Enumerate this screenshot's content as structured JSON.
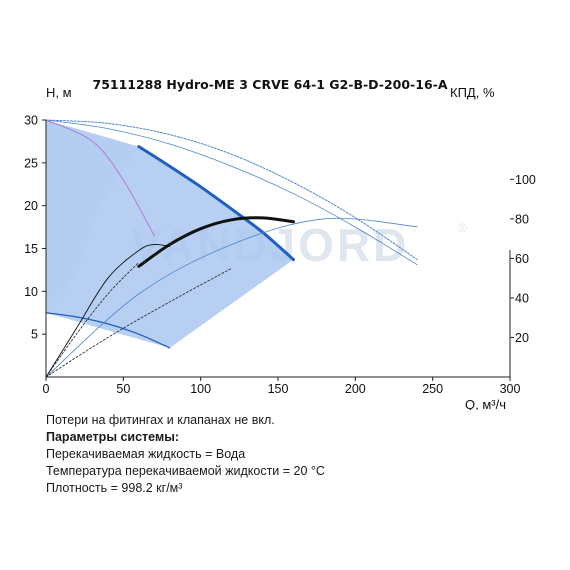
{
  "chart_data": {
    "type": "line",
    "title": "75111288 Hydro-ME 3 CRVE 64-1 G2-B-D-200-16-A",
    "watermark": "VANDJORD",
    "watermark_mark": "®",
    "xlabel": "Q, м³/ч",
    "ylabel_left": "H, м",
    "ylabel_right": "КПД, %",
    "xlim": [
      0,
      300
    ],
    "ylim_left": [
      0,
      30
    ],
    "ylim_right": [
      0,
      130
    ],
    "x_ticks": [
      "0",
      "50",
      "100",
      "150",
      "200",
      "250",
      "300"
    ],
    "y_left_ticks": [
      "5",
      "10",
      "15",
      "20",
      "25",
      "30"
    ],
    "y_right_ticks": [
      "20",
      "40",
      "60",
      "80",
      "100"
    ],
    "x_tick_values": [
      0,
      50,
      100,
      150,
      200,
      250,
      300
    ],
    "y_left_tick_values": [
      5,
      10,
      15,
      20,
      25,
      30
    ],
    "y_right_tick_values": [
      20,
      40,
      60,
      80,
      100
    ],
    "grid": false,
    "colors": {
      "operating_area": "#a9c7f0",
      "light_area": "#eef3fb",
      "head_curve": "#1f5fbf",
      "thin_curve": "#4f86cf",
      "purple_curve": "#b57ad6",
      "efficiency": "#111111",
      "dashed": "#333333"
    },
    "series": [
      {
        "kind": "head_duty",
        "axis": "left",
        "x": [
          60,
          80,
          100,
          120,
          140,
          160
        ],
        "y": [
          26.9,
          24.6,
          22.2,
          19.6,
          16.9,
          13.7
        ]
      },
      {
        "kind": "head_max",
        "axis": "left",
        "x": [
          0,
          40,
          80,
          120,
          160,
          200,
          240
        ],
        "y": [
          30.0,
          29.6,
          28.3,
          26.0,
          22.7,
          18.6,
          13.7
        ]
      },
      {
        "kind": "head_reduced",
        "axis": "left",
        "x": [
          0,
          40,
          80,
          120,
          160,
          200,
          240
        ],
        "y": [
          30.0,
          29.0,
          27.2,
          24.6,
          21.4,
          17.5,
          13.1
        ]
      },
      {
        "kind": "head_min",
        "axis": "left",
        "x": [
          0,
          20,
          40,
          60,
          80
        ],
        "y": [
          7.5,
          7.0,
          6.2,
          5.0,
          3.4
        ]
      },
      {
        "kind": "power_or_npsh",
        "axis": "left",
        "x": [
          0,
          30,
          50,
          70
        ],
        "y": [
          30.0,
          27.5,
          23.0,
          16.5
        ]
      },
      {
        "kind": "efficiency_duty",
        "axis": "right",
        "x": [
          60,
          80,
          100,
          120,
          140,
          160
        ],
        "y": [
          56,
          67,
          75,
          79.5,
          80.5,
          78.5
        ]
      },
      {
        "kind": "efficiency_small",
        "axis": "right",
        "x": [
          0,
          20,
          40,
          60,
          70,
          80
        ],
        "y": [
          0,
          25,
          50,
          64,
          67,
          66
        ]
      },
      {
        "kind": "efficiency_full",
        "axis": "right",
        "x": [
          0,
          60,
          120,
          180,
          240
        ],
        "y": [
          0,
          42,
          67,
          80,
          76
        ]
      },
      {
        "kind": "system_dashed_1",
        "axis": "right",
        "x": [
          0,
          20,
          40,
          60
        ],
        "y": [
          0,
          22,
          42,
          58
        ]
      },
      {
        "kind": "system_dashed_2",
        "axis": "right",
        "x": [
          0,
          40,
          80,
          120
        ],
        "y": [
          0,
          20,
          38,
          55
        ]
      }
    ],
    "operating_area": [
      [
        0,
        30
      ],
      [
        60,
        26.9
      ],
      [
        100,
        22.2
      ],
      [
        140,
        16.9
      ],
      [
        160,
        13.7
      ],
      [
        80,
        3.4
      ],
      [
        0,
        7.5
      ]
    ],
    "light_area": [
      [
        0,
        30
      ],
      [
        60,
        26.9
      ],
      [
        35,
        20
      ],
      [
        20,
        12
      ],
      [
        0,
        7.5
      ]
    ]
  },
  "notes": {
    "line1": "Потери на фитингах и клапанах не вкл.",
    "heading": "Параметры системы:",
    "line2": "Перекачиваемая жидкость = Вода",
    "line3": "Температура перекачиваемой жидкости = 20 °C",
    "line4": "Плотность = 998.2 кг/м³"
  }
}
